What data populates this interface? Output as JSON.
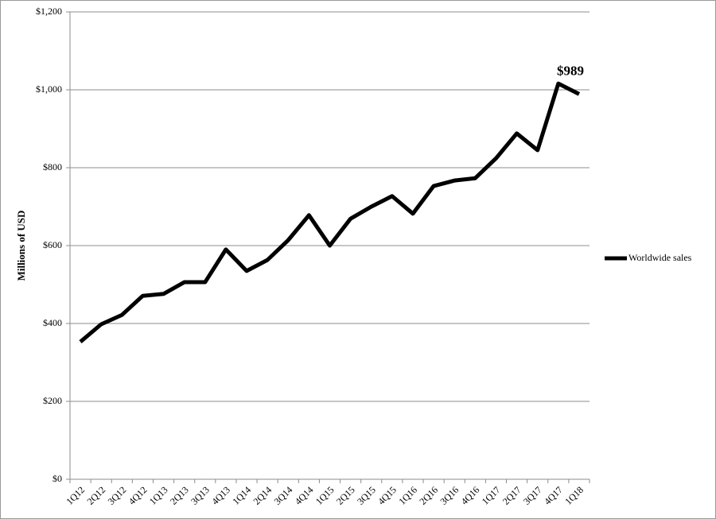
{
  "chart_data": {
    "type": "line",
    "y_label": "Millions of USD",
    "categories": [
      "1Q12",
      "2Q12",
      "3Q12",
      "4Q12",
      "1Q13",
      "2Q13",
      "3Q13",
      "4Q13",
      "1Q14",
      "2Q14",
      "3Q14",
      "4Q14",
      "1Q15",
      "2Q15",
      "3Q15",
      "4Q15",
      "1Q16",
      "2Q16",
      "3Q16",
      "4Q16",
      "1Q17",
      "2Q17",
      "3Q17",
      "4Q17",
      "1Q18"
    ],
    "series": [
      {
        "name": "Worldwide sales",
        "color": "#000000",
        "values": [
          353,
          398,
          422,
          471,
          476,
          506,
          506,
          590,
          535,
          563,
          614,
          678,
          600,
          669,
          700,
          727,
          682,
          753,
          767,
          773,
          824,
          888,
          845,
          1016,
          989
        ],
        "value_labels": [
          null,
          null,
          null,
          null,
          null,
          null,
          null,
          null,
          null,
          null,
          null,
          null,
          null,
          null,
          null,
          null,
          null,
          null,
          null,
          null,
          null,
          null,
          null,
          null,
          "$989"
        ]
      }
    ],
    "ylim": [
      0,
      1200
    ],
    "yticks": [
      {
        "value": 0,
        "label": "$0"
      },
      {
        "value": 200,
        "label": "$200"
      },
      {
        "value": 400,
        "label": "$400"
      },
      {
        "value": 600,
        "label": "$600"
      },
      {
        "value": 800,
        "label": "$800"
      },
      {
        "value": 1000,
        "label": "$1,000"
      },
      {
        "value": 1200,
        "label": "$1,200"
      }
    ],
    "grid": true,
    "legend": "right"
  }
}
